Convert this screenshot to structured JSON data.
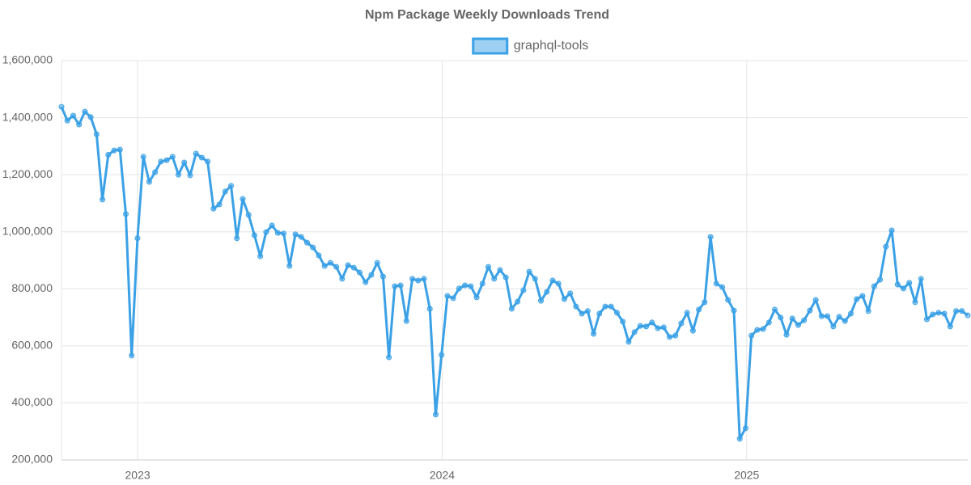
{
  "chart_data": {
    "type": "line",
    "title": "Npm Package Weekly Downloads Trend",
    "x": [
      2022.75,
      2022.7692,
      2022.7884,
      2022.8076,
      2022.8268,
      2022.846,
      2022.8652,
      2022.8844,
      2022.9036,
      2022.9228,
      2022.942,
      2022.9612,
      2022.9804,
      2022.9996,
      2023.0188,
      2023.038,
      2023.0572,
      2023.0764,
      2023.0956,
      2023.1148,
      2023.134,
      2023.1532,
      2023.1724,
      2023.1916,
      2023.2108,
      2023.23,
      2023.2492,
      2023.2684,
      2023.2876,
      2023.3068,
      2023.326,
      2023.3452,
      2023.3644,
      2023.3836,
      2023.4028,
      2023.422,
      2023.4412,
      2023.4604,
      2023.4796,
      2023.4988,
      2023.518,
      2023.5372,
      2023.5564,
      2023.5756,
      2023.5948,
      2023.614,
      2023.6332,
      2023.6524,
      2023.6716,
      2023.6908,
      2023.71,
      2023.7292,
      2023.7484,
      2023.7676,
      2023.7868,
      2023.806,
      2023.8252,
      2023.8444,
      2023.8636,
      2023.8828,
      2023.902,
      2023.9212,
      2023.9404,
      2023.9596,
      2023.9788,
      2023.998,
      2024.0172,
      2024.0364,
      2024.0556,
      2024.0748,
      2024.094,
      2024.1132,
      2024.1324,
      2024.1516,
      2024.1708,
      2024.19,
      2024.2092,
      2024.2284,
      2024.2476,
      2024.2668,
      2024.286,
      2024.3052,
      2024.3244,
      2024.3436,
      2024.3628,
      2024.382,
      2024.4012,
      2024.4204,
      2024.4396,
      2024.4588,
      2024.478,
      2024.4972,
      2024.5164,
      2024.5356,
      2024.5548,
      2024.574,
      2024.5932,
      2024.6124,
      2024.6316,
      2024.6508,
      2024.67,
      2024.6892,
      2024.7084,
      2024.7276,
      2024.7468,
      2024.766,
      2024.7852,
      2024.8044,
      2024.8236,
      2024.8428,
      2024.862,
      2024.8812,
      2024.9004,
      2024.9196,
      2024.9388,
      2024.958,
      2024.9772,
      2024.9964,
      2025.0156,
      2025.0348,
      2025.054,
      2025.0732,
      2025.0924,
      2025.1116,
      2025.1308,
      2025.15,
      2025.1692,
      2025.1884,
      2025.2076,
      2025.2268,
      2025.246,
      2025.2652,
      2025.2844,
      2025.3036,
      2025.3228,
      2025.342,
      2025.3612,
      2025.3804,
      2025.3996,
      2025.4188,
      2025.438,
      2025.4572,
      2025.4764,
      2025.4956,
      2025.5148,
      2025.534,
      2025.5532,
      2025.5724,
      2025.5916,
      2025.6108,
      2025.63,
      2025.6492,
      2025.6684,
      2025.6876,
      2025.7068,
      2025.726
    ],
    "series": [
      {
        "name": "graphql-tools",
        "color": "#3ba1e6",
        "values": [
          1438000,
          1390000,
          1407000,
          1376000,
          1421000,
          1402000,
          1342000,
          1113000,
          1270000,
          1285000,
          1288000,
          1062000,
          566000,
          977000,
          1263000,
          1175000,
          1209000,
          1246000,
          1251000,
          1263000,
          1200000,
          1243000,
          1198000,
          1274000,
          1260000,
          1246000,
          1081000,
          1096000,
          1141000,
          1161000,
          977000,
          1115000,
          1059000,
          988000,
          914000,
          999000,
          1022000,
          996000,
          994000,
          880000,
          991000,
          982000,
          962000,
          945000,
          917000,
          880000,
          891000,
          877000,
          835000,
          883000,
          874000,
          857000,
          823000,
          849000,
          891000,
          843000,
          560000,
          809000,
          812000,
          687000,
          835000,
          829000,
          835000,
          730000,
          359000,
          568000,
          775000,
          767000,
          801000,
          812000,
          809000,
          770000,
          818000,
          877000,
          835000,
          866000,
          840000,
          730000,
          755000,
          795000,
          860000,
          835000,
          758000,
          789000,
          829000,
          818000,
          764000,
          784000,
          738000,
          713000,
          722000,
          642000,
          713000,
          738000,
          738000,
          716000,
          685000,
          614000,
          648000,
          670000,
          668000,
          682000,
          662000,
          665000,
          631000,
          636000,
          679000,
          716000,
          653000,
          727000,
          753000,
          982000,
          818000,
          806000,
          761000,
          724000,
          274000,
          311000,
          636000,
          656000,
          659000,
          682000,
          727000,
          699000,
          639000,
          696000,
          673000,
          690000,
          724000,
          761000,
          704000,
          704000,
          668000,
          702000,
          687000,
          713000,
          764000,
          775000,
          722000,
          809000,
          832000,
          948000,
          1005000,
          815000,
          801000,
          821000,
          753000,
          835000,
          693000,
          710000,
          716000,
          713000,
          668000,
          722000,
          722000,
          707000
        ]
      }
    ],
    "xlim": [
      2022.75,
      2025.726
    ],
    "xticks": [
      2023,
      2024,
      2025
    ],
    "ylim": [
      200000,
      1600000
    ],
    "yticks": [
      {
        "value": 200000,
        "label": "200,000"
      },
      {
        "value": 400000,
        "label": "400,000"
      },
      {
        "value": 600000,
        "label": "600,000"
      },
      {
        "value": 800000,
        "label": "800,000"
      },
      {
        "value": 1000000,
        "label": "1,000,000"
      },
      {
        "value": 1200000,
        "label": "1,200,000"
      },
      {
        "value": 1400000,
        "label": "1,400,000"
      },
      {
        "value": 1600000,
        "label": "1,600,000"
      }
    ],
    "grid": true,
    "legend": "top"
  }
}
